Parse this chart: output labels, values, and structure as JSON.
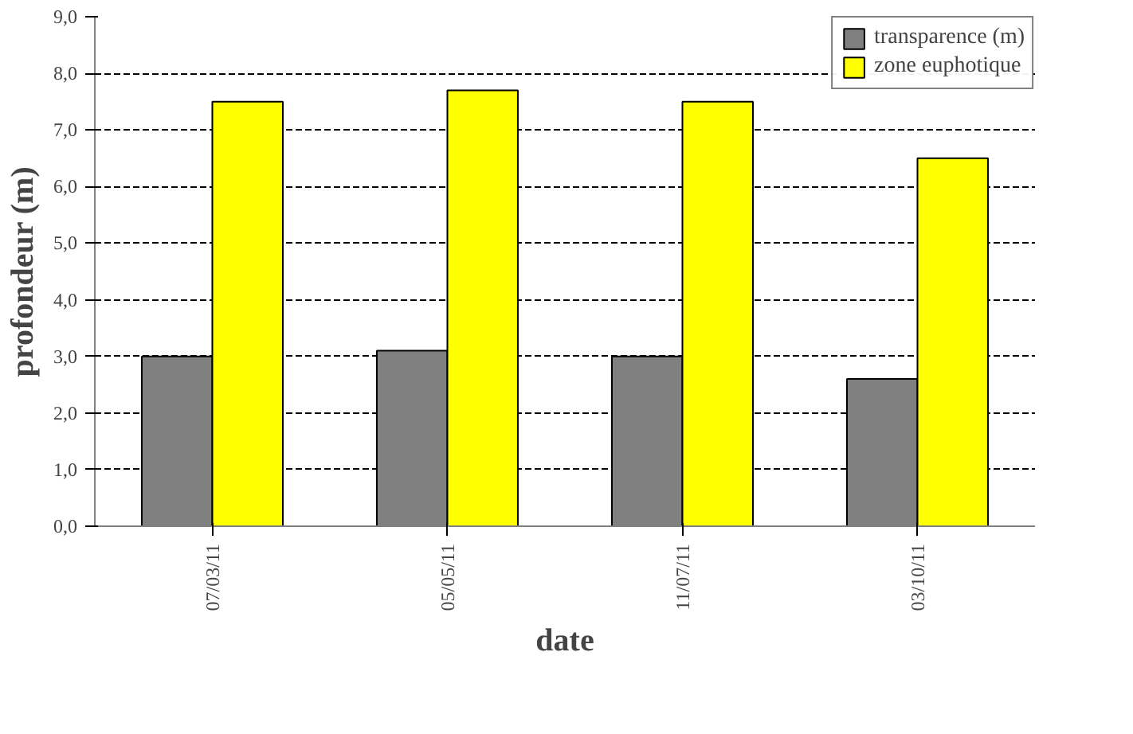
{
  "chart_data": {
    "type": "bar",
    "xlabel": "date",
    "ylabel": "profondeur (m)",
    "categories": [
      "07/03/11",
      "05/05/11",
      "11/07/11",
      "03/10/11"
    ],
    "series": [
      {
        "name": "transparence (m)",
        "color": "#808080",
        "values": [
          3.0,
          3.1,
          3.0,
          2.6
        ]
      },
      {
        "name": "zone euphotique",
        "color": "#ffff00",
        "values": [
          7.5,
          7.7,
          7.5,
          6.5
        ]
      }
    ],
    "ylim": [
      0,
      9
    ],
    "yticks": [
      {
        "value": 0,
        "label": "0,0"
      },
      {
        "value": 1,
        "label": "1,0"
      },
      {
        "value": 2,
        "label": "2,0"
      },
      {
        "value": 3,
        "label": "3,0"
      },
      {
        "value": 4,
        "label": "4,0"
      },
      {
        "value": 5,
        "label": "5,0"
      },
      {
        "value": 6,
        "label": "6,0"
      },
      {
        "value": 7,
        "label": "7,0"
      },
      {
        "value": 8,
        "label": "8,0"
      },
      {
        "value": 9,
        "label": "9,0"
      }
    ],
    "grid": "y",
    "legend": "top right"
  }
}
